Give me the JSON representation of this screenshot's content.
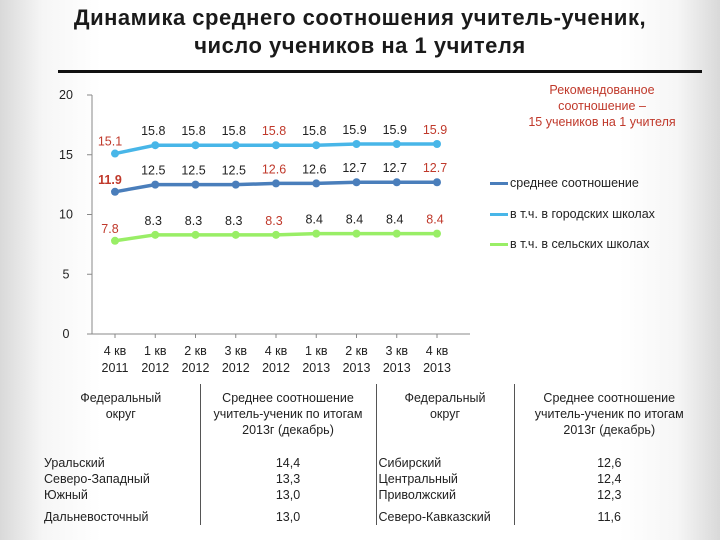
{
  "title_line1": "Динамика среднего соотношения учитель-ученик,",
  "title_line2": "число учеников на 1 учителя",
  "recommendation_note": [
    "Рекомендованное",
    "соотношение –",
    "15 учеников на 1 учителя"
  ],
  "chart_data": {
    "type": "line",
    "categories": [
      [
        "4 кв",
        "2011"
      ],
      [
        "1 кв",
        "2012"
      ],
      [
        "2 кв",
        "2012"
      ],
      [
        "3 кв",
        "2012"
      ],
      [
        "4 кв",
        "2012"
      ],
      [
        "1 кв",
        "2013"
      ],
      [
        "2 кв",
        "2013"
      ],
      [
        "3 кв",
        "2013"
      ],
      [
        "4 кв",
        "2013"
      ]
    ],
    "ylim": [
      0,
      20
    ],
    "yticks": [
      0,
      5,
      10,
      15,
      20
    ],
    "grid": false,
    "legend_position": "right",
    "series": [
      {
        "name": "среднее соотношение",
        "color": "#4a7ebb",
        "values": [
          11.9,
          12.5,
          12.5,
          12.5,
          12.6,
          12.6,
          12.7,
          12.7,
          12.7
        ],
        "labels": [
          "11.9",
          "12.5",
          "12.5",
          "12.5",
          "12.6",
          "12.6",
          "12.7",
          "12.7",
          "12.7"
        ],
        "label_colors": [
          "#c0392b",
          "#222",
          "#222",
          "#222",
          "#c0392b",
          "#222",
          "#222",
          "#222",
          "#c0392b"
        ]
      },
      {
        "name": "в т.ч. в городских школах",
        "color": "#48b6e8",
        "values": [
          15.1,
          15.8,
          15.8,
          15.8,
          15.8,
          15.8,
          15.9,
          15.9,
          15.9
        ],
        "labels": [
          "15.1",
          "15.8",
          "15.8",
          "15.8",
          "15.8",
          "15.8",
          "15.9",
          "15.9",
          "15.9"
        ],
        "label_colors": [
          "#c0392b",
          "#222",
          "#222",
          "#222",
          "#c0392b",
          "#222",
          "#222",
          "#222",
          "#c0392b"
        ]
      },
      {
        "name": "в т.ч. в сельских школах",
        "color": "#99ee66",
        "values": [
          7.8,
          8.3,
          8.3,
          8.3,
          8.3,
          8.4,
          8.4,
          8.4,
          8.4
        ],
        "labels": [
          "7.8",
          "8.3",
          "8.3",
          "8.3",
          "8.3",
          "8.4",
          "8.4",
          "8.4",
          "8.4"
        ],
        "label_colors": [
          "#c0392b",
          "#222",
          "#222",
          "#222",
          "#c0392b",
          "#222",
          "#222",
          "#222",
          "#c0392b"
        ]
      }
    ]
  },
  "table": {
    "headers": [
      [
        "Федеральный",
        "округ"
      ],
      [
        "Среднее соотношение",
        "учитель-ученик по итогам",
        "2013г (декабрь)"
      ],
      [
        "Федеральный",
        "округ"
      ],
      [
        "Среднее соотношение",
        "учитель-ученик по итогам",
        "2013г (декабрь)"
      ]
    ],
    "rows": [
      [
        "Уральский",
        "14,4",
        "Сибирский",
        "12,6"
      ],
      [
        "Северо-Западный",
        "13,3",
        "Центральный",
        "12,4"
      ],
      [
        "Южный",
        "13,0",
        "Приволжский",
        "12,3"
      ],
      [
        "Дальневосточный",
        "13,0",
        "Северо-Кавказский",
        "11,6"
      ]
    ]
  }
}
